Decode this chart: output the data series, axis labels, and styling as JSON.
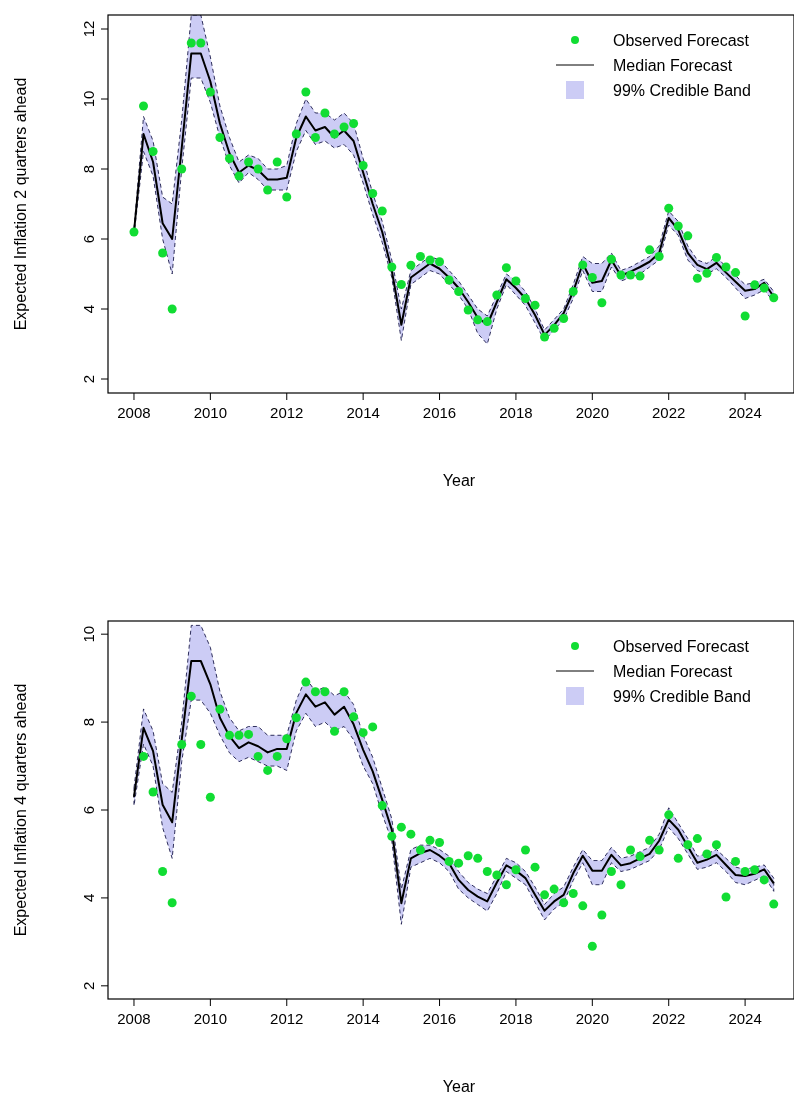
{
  "chart_data": [
    {
      "type": "line",
      "xlabel": "Year",
      "ylabel": "Expected Inflation 2 quarters ahead",
      "xlim": [
        2007.32,
        2025.28
      ],
      "ylim": [
        1.6,
        12.4
      ],
      "xticks": [
        2008,
        2010,
        2012,
        2014,
        2016,
        2018,
        2020,
        2022,
        2024
      ],
      "yticks": [
        2,
        4,
        6,
        8,
        10,
        12
      ],
      "legend": "top right",
      "annotations": [
        "99% Credible Band"
      ],
      "x": [
        2008,
        2008.25,
        2008.5,
        2008.75,
        2009,
        2009.25,
        2009.5,
        2009.75,
        2010,
        2010.25,
        2010.5,
        2010.75,
        2011,
        2011.25,
        2011.5,
        2011.75,
        2012,
        2012.25,
        2012.5,
        2012.75,
        2013,
        2013.25,
        2013.5,
        2013.75,
        2014,
        2014.25,
        2014.5,
        2014.75,
        2015,
        2015.25,
        2015.5,
        2015.75,
        2016,
        2016.25,
        2016.5,
        2016.75,
        2017,
        2017.25,
        2017.5,
        2017.75,
        2018,
        2018.25,
        2018.5,
        2018.75,
        2019,
        2019.25,
        2019.5,
        2019.75,
        2020,
        2020.25,
        2020.5,
        2020.75,
        2021,
        2021.25,
        2021.5,
        2021.75,
        2022,
        2022.25,
        2022.5,
        2022.75,
        2023,
        2023.25,
        2023.5,
        2023.75,
        2024,
        2024.25,
        2024.5,
        2024.75
      ],
      "series": [
        {
          "name": "Observed Forecast",
          "type": "scatter",
          "marker": "circle",
          "color": "#11dd33",
          "values": [
            6.2,
            9.8,
            8.5,
            5.6,
            4.0,
            8.0,
            11.6,
            11.6,
            10.2,
            8.9,
            8.3,
            7.8,
            8.2,
            8.0,
            7.4,
            8.2,
            7.2,
            9.0,
            10.2,
            8.9,
            9.6,
            9.0,
            9.2,
            9.3,
            8.1,
            7.3,
            6.8,
            5.2,
            4.7,
            5.25,
            5.5,
            5.4,
            5.35,
            4.83,
            4.5,
            3.97,
            3.69,
            3.64,
            4.4,
            5.18,
            4.8,
            4.3,
            4.11,
            3.2,
            3.45,
            3.73,
            4.5,
            5.26,
            4.9,
            4.18,
            5.42,
            4.97,
            4.97,
            4.94,
            5.69,
            5.5,
            6.88,
            6.37,
            6.09,
            4.88,
            5.02,
            5.47,
            5.2,
            5.04,
            3.8,
            4.69,
            4.6,
            4.32
          ]
        },
        {
          "name": "Median Forecast",
          "type": "line",
          "color": "#000000",
          "line_style": "solid",
          "values": [
            6.2,
            9.0,
            8.2,
            6.45,
            6.0,
            8.6,
            11.3,
            11.3,
            10.5,
            9.3,
            8.45,
            7.9,
            8.1,
            7.97,
            7.7,
            7.7,
            7.75,
            8.9,
            9.5,
            9.1,
            9.2,
            8.9,
            9.1,
            8.8,
            7.9,
            7.0,
            6.2,
            5.1,
            3.55,
            4.9,
            5.1,
            5.3,
            5.15,
            4.9,
            4.6,
            4.2,
            3.75,
            3.55,
            4.2,
            4.85,
            4.6,
            4.3,
            3.83,
            3.26,
            3.54,
            3.88,
            4.5,
            5.3,
            4.75,
            4.8,
            5.4,
            4.95,
            5.07,
            5.2,
            5.35,
            5.6,
            6.6,
            6.26,
            5.6,
            5.26,
            5.14,
            5.32,
            5.04,
            4.78,
            4.52,
            4.57,
            4.75,
            4.35
          ],
          "lower": [
            6.1,
            8.5,
            7.8,
            6.0,
            5.0,
            8.0,
            10.6,
            10.6,
            9.9,
            8.9,
            8.1,
            7.6,
            7.9,
            7.7,
            7.4,
            7.4,
            7.4,
            8.5,
            9.1,
            8.7,
            8.8,
            8.6,
            8.7,
            8.4,
            7.6,
            6.7,
            5.9,
            4.9,
            3.1,
            4.7,
            4.9,
            5.1,
            5.0,
            4.7,
            4.4,
            4.0,
            3.3,
            3.0,
            4.0,
            4.7,
            4.4,
            4.1,
            3.6,
            3.1,
            3.4,
            3.7,
            4.3,
            5.1,
            4.5,
            4.5,
            5.2,
            4.8,
            4.9,
            5.0,
            5.2,
            5.4,
            6.4,
            6.1,
            5.4,
            5.1,
            5.0,
            5.15,
            4.9,
            4.6,
            4.3,
            4.4,
            4.55,
            4.2
          ],
          "upper": [
            6.3,
            9.5,
            8.8,
            7.2,
            7.0,
            9.4,
            12.4,
            12.4,
            11.2,
            9.8,
            8.9,
            8.2,
            8.4,
            8.3,
            8.0,
            8.0,
            8.1,
            9.3,
            10.0,
            9.6,
            9.6,
            9.4,
            9.6,
            9.3,
            8.3,
            7.3,
            6.5,
            5.4,
            4.0,
            5.1,
            5.3,
            5.5,
            5.4,
            5.1,
            4.8,
            4.4,
            4.0,
            3.8,
            4.4,
            5.0,
            4.8,
            4.5,
            4.0,
            3.4,
            3.7,
            4.0,
            4.7,
            5.5,
            5.3,
            5.3,
            5.6,
            5.1,
            5.2,
            5.35,
            5.5,
            5.8,
            6.8,
            6.5,
            5.8,
            5.4,
            5.3,
            5.5,
            5.2,
            4.95,
            4.7,
            4.75,
            4.85,
            4.5
          ]
        }
      ]
    },
    {
      "type": "line",
      "xlabel": "Year",
      "ylabel": "Expected Inflation 4 quarters ahead",
      "xlim": [
        2007.32,
        2025.28
      ],
      "ylim": [
        1.7,
        10.3
      ],
      "xticks": [
        2008,
        2010,
        2012,
        2014,
        2016,
        2018,
        2020,
        2022,
        2024
      ],
      "yticks": [
        2,
        4,
        6,
        8,
        10
      ],
      "legend": "top right",
      "annotations": [
        "99% Credible Band"
      ],
      "x": [
        2008,
        2008.25,
        2008.5,
        2008.75,
        2009,
        2009.25,
        2009.5,
        2009.75,
        2010,
        2010.25,
        2010.5,
        2010.75,
        2011,
        2011.25,
        2011.5,
        2011.75,
        2012,
        2012.25,
        2012.5,
        2012.75,
        2013,
        2013.25,
        2013.5,
        2013.75,
        2014,
        2014.25,
        2014.5,
        2014.75,
        2015,
        2015.25,
        2015.5,
        2015.75,
        2016,
        2016.25,
        2016.5,
        2016.75,
        2017,
        2017.25,
        2017.5,
        2017.75,
        2018,
        2018.25,
        2018.5,
        2018.75,
        2019,
        2019.25,
        2019.5,
        2019.75,
        2020,
        2020.25,
        2020.5,
        2020.75,
        2021,
        2021.25,
        2021.5,
        2021.75,
        2022,
        2022.25,
        2022.5,
        2022.75,
        2023,
        2023.25,
        2023.5,
        2023.75,
        2024,
        2024.25,
        2024.5,
        2024.75
      ],
      "series": [
        {
          "name": "Observed Forecast",
          "type": "scatter",
          "marker": "circle",
          "color": "#11dd33",
          "values": [
            null,
            7.22,
            6.41,
            4.6,
            3.89,
            7.49,
            8.59,
            7.49,
            6.29,
            8.29,
            7.7,
            7.7,
            7.72,
            7.22,
            6.9,
            7.22,
            7.62,
            8.1,
            8.91,
            8.69,
            8.69,
            7.79,
            8.69,
            8.12,
            7.76,
            7.89,
            6.1,
            5.4,
            5.61,
            5.45,
            5.09,
            5.31,
            5.26,
            4.83,
            4.79,
            4.96,
            4.9,
            4.6,
            4.52,
            4.3,
            4.64,
            5.09,
            4.7,
            4.07,
            4.2,
            3.89,
            4.1,
            3.82,
            2.9,
            3.61,
            4.6,
            4.3,
            5.09,
            4.94,
            5.31,
            5.09,
            5.89,
            4.9,
            5.21,
            5.35,
            5.0,
            5.21,
            4.02,
            4.83,
            4.6,
            4.64,
            4.41,
            3.86
          ]
        },
        {
          "name": "Median Forecast",
          "type": "line",
          "color": "#000000",
          "line_style": "solid",
          "values": [
            6.3,
            7.87,
            7.34,
            6.12,
            5.72,
            7.6,
            9.39,
            9.39,
            8.86,
            8.1,
            7.68,
            7.41,
            7.54,
            7.45,
            7.31,
            7.39,
            7.39,
            8.21,
            8.63,
            8.35,
            8.45,
            8.17,
            8.35,
            7.95,
            7.37,
            6.88,
            6.23,
            5.55,
            3.88,
            4.9,
            5.02,
            5.09,
            4.96,
            4.79,
            4.41,
            4.18,
            4.03,
            3.92,
            4.35,
            4.74,
            4.62,
            4.45,
            4.07,
            3.71,
            3.92,
            4.07,
            4.56,
            4.96,
            4.62,
            4.62,
            4.98,
            4.74,
            4.79,
            4.9,
            5.0,
            5.3,
            5.78,
            5.55,
            5.17,
            4.8,
            4.87,
            4.98,
            4.75,
            4.52,
            4.5,
            4.55,
            4.65,
            4.33
          ],
          "lower": [
            6.1,
            7.5,
            7.0,
            5.6,
            4.9,
            7.1,
            8.5,
            8.5,
            8.2,
            7.7,
            7.3,
            7.1,
            7.2,
            7.1,
            7.0,
            7.0,
            6.9,
            7.8,
            8.2,
            7.9,
            8.0,
            7.8,
            7.9,
            7.6,
            7.0,
            6.6,
            5.9,
            5.3,
            3.4,
            4.7,
            4.8,
            4.9,
            4.8,
            4.6,
            4.2,
            4.0,
            3.85,
            3.7,
            4.1,
            4.6,
            4.45,
            4.3,
            3.9,
            3.5,
            3.75,
            3.9,
            4.4,
            4.8,
            4.3,
            4.3,
            4.8,
            4.6,
            4.65,
            4.75,
            4.85,
            5.1,
            5.6,
            5.35,
            5.0,
            4.65,
            4.7,
            4.8,
            4.6,
            4.35,
            4.3,
            4.4,
            4.5,
            4.15
          ],
          "upper": [
            6.5,
            8.3,
            7.8,
            6.6,
            6.4,
            8.0,
            10.2,
            10.2,
            9.7,
            8.7,
            8.1,
            7.8,
            7.9,
            7.9,
            7.7,
            7.7,
            7.7,
            8.5,
            9.0,
            8.7,
            8.8,
            8.6,
            8.7,
            8.4,
            7.7,
            7.2,
            6.5,
            5.8,
            4.2,
            5.1,
            5.2,
            5.2,
            5.1,
            4.95,
            4.6,
            4.35,
            4.2,
            4.1,
            4.5,
            4.9,
            4.8,
            4.6,
            4.25,
            3.85,
            4.1,
            4.25,
            4.7,
            5.1,
            4.85,
            4.85,
            5.15,
            4.9,
            4.95,
            5.05,
            5.15,
            5.45,
            6.05,
            5.7,
            5.35,
            4.95,
            5.0,
            5.1,
            4.9,
            4.7,
            4.65,
            4.7,
            4.75,
            4.45
          ]
        }
      ]
    }
  ]
}
